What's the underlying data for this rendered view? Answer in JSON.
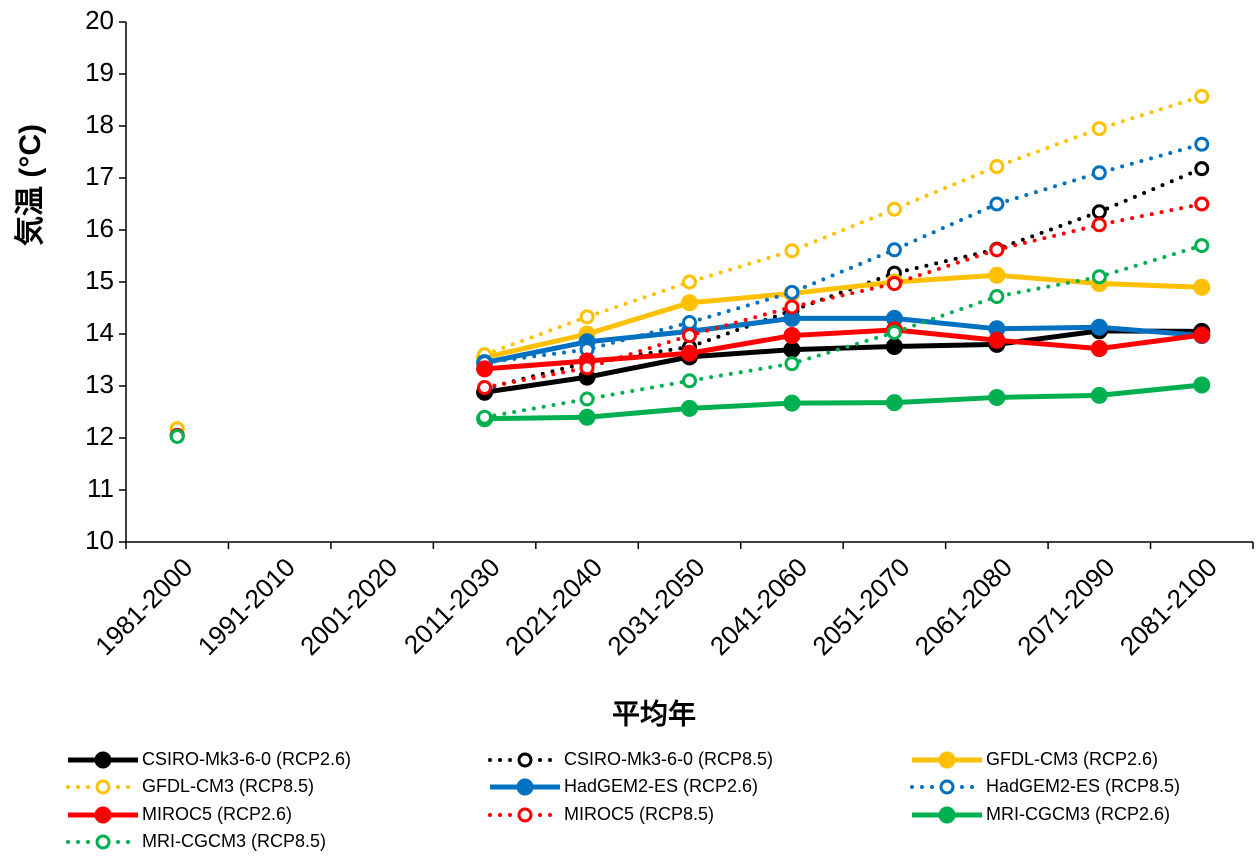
{
  "chart_data": {
    "type": "line",
    "x_label": "平均年",
    "y_label": "気温 (°C)",
    "categories": [
      "1981-2000",
      "1991-2010",
      "2001-2020",
      "2011-2030",
      "2021-2040",
      "2031-2050",
      "2041-2060",
      "2051-2070",
      "2061-2080",
      "2071-2090",
      "2081-2100"
    ],
    "ylim": [
      10,
      20
    ],
    "yticks": [
      10,
      11,
      12,
      13,
      14,
      15,
      16,
      17,
      18,
      19,
      20
    ],
    "grid": false,
    "legend": "bottom",
    "series": [
      {
        "name": "CSIRO-Mk3-6-0 (RCP2.6)",
        "color": "#000000",
        "line_style": "solid",
        "marker": "filled",
        "values": [
          null,
          null,
          null,
          12.88,
          13.17,
          13.56,
          13.7,
          13.76,
          13.8,
          14.06,
          14.05
        ]
      },
      {
        "name": "CSIRO-Mk3-6-0 (RCP8.5)",
        "color": "#000000",
        "line_style": "dotted",
        "marker": "open",
        "values": [
          12.05,
          null,
          null,
          12.95,
          13.45,
          13.75,
          14.45,
          15.17,
          15.63,
          16.35,
          17.18
        ]
      },
      {
        "name": "GFDL-CM3 (RCP2.6)",
        "color": "#ffc000",
        "line_style": "solid",
        "marker": "filled",
        "values": [
          null,
          null,
          null,
          13.55,
          14.0,
          14.6,
          14.78,
          15.0,
          15.13,
          14.97,
          14.9
        ]
      },
      {
        "name": "GFDL-CM3 (RCP8.5)",
        "color": "#ffc000",
        "line_style": "dotted",
        "marker": "open",
        "values": [
          12.18,
          null,
          null,
          13.6,
          14.33,
          15.0,
          15.6,
          16.4,
          17.22,
          17.95,
          18.57
        ]
      },
      {
        "name": "HadGEM2-ES (RCP2.6)",
        "color": "#0070c0",
        "line_style": "solid",
        "marker": "filled",
        "values": [
          null,
          null,
          null,
          13.45,
          13.85,
          14.05,
          14.3,
          14.3,
          14.1,
          14.13,
          13.97
        ]
      },
      {
        "name": "HadGEM2-ES (RCP8.5)",
        "color": "#0070c0",
        "line_style": "dotted",
        "marker": "open",
        "values": [
          12.05,
          null,
          null,
          13.45,
          13.7,
          14.22,
          14.8,
          15.62,
          16.5,
          17.1,
          17.65
        ]
      },
      {
        "name": "MIROC5 (RCP2.6)",
        "color": "#ff0000",
        "line_style": "solid",
        "marker": "filled",
        "values": [
          null,
          null,
          null,
          13.33,
          13.48,
          13.63,
          13.97,
          14.08,
          13.88,
          13.72,
          13.98
        ]
      },
      {
        "name": "MIROC5 (RCP8.5)",
        "color": "#ff0000",
        "line_style": "dotted",
        "marker": "open",
        "values": [
          12.05,
          null,
          null,
          12.97,
          13.35,
          13.97,
          14.52,
          14.97,
          15.62,
          16.1,
          16.5
        ]
      },
      {
        "name": "MRI-CGCM3 (RCP2.6)",
        "color": "#00b050",
        "line_style": "solid",
        "marker": "filled",
        "values": [
          null,
          null,
          null,
          12.37,
          12.4,
          12.57,
          12.67,
          12.68,
          12.78,
          12.82,
          13.02
        ]
      },
      {
        "name": "MRI-CGCM3 (RCP8.5)",
        "color": "#00b050",
        "line_style": "dotted",
        "marker": "open",
        "values": [
          12.03,
          null,
          null,
          12.4,
          12.75,
          13.1,
          13.43,
          14.03,
          14.72,
          15.1,
          15.7
        ]
      }
    ]
  }
}
